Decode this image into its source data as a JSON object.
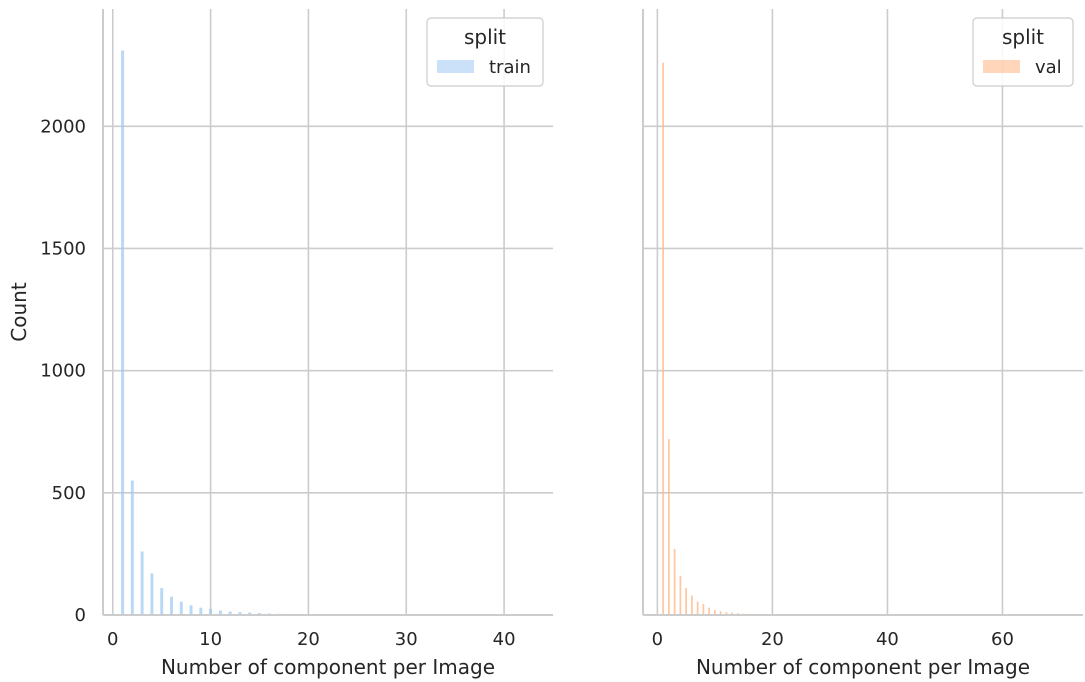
{
  "chart_data": [
    {
      "type": "bar",
      "xlabel": "Number of component per Image",
      "ylabel": "Count",
      "xlim": [
        -1,
        45
      ],
      "ylim": [
        0,
        2480
      ],
      "xticks": [
        0,
        10,
        20,
        30,
        40
      ],
      "yticks": [
        0,
        500,
        1000,
        1500,
        2000
      ],
      "grid": true,
      "legend": {
        "title": "split",
        "placement": "top-right"
      },
      "series": [
        {
          "name": "train",
          "color": "#a1c9f4",
          "x": [
            0,
            1,
            2,
            3,
            4,
            5,
            6,
            7,
            8,
            9,
            10,
            11,
            12,
            13,
            14,
            15,
            16,
            17,
            18,
            19,
            20,
            25,
            30,
            35,
            40,
            42
          ],
          "values": [
            0,
            2310,
            550,
            260,
            170,
            110,
            75,
            55,
            40,
            30,
            25,
            18,
            14,
            12,
            10,
            8,
            6,
            5,
            4,
            3,
            3,
            2,
            1,
            1,
            1,
            1
          ]
        }
      ]
    },
    {
      "type": "bar",
      "xlabel": "Number of component per Image",
      "ylabel": "",
      "xlim": [
        -2.5,
        74
      ],
      "ylim": [
        0,
        2480
      ],
      "xticks": [
        0,
        20,
        40,
        60
      ],
      "yticks": [
        0,
        500,
        1000,
        1500,
        2000
      ],
      "grid": true,
      "legend": {
        "title": "split",
        "placement": "top-right"
      },
      "series": [
        {
          "name": "val",
          "color": "#ffb482",
          "x": [
            0,
            1,
            2,
            3,
            4,
            5,
            6,
            7,
            8,
            9,
            10,
            11,
            12,
            13,
            14,
            15,
            20,
            30,
            40,
            50,
            60,
            70
          ],
          "values": [
            0,
            2260,
            720,
            270,
            160,
            110,
            80,
            55,
            45,
            30,
            20,
            15,
            12,
            10,
            8,
            6,
            3,
            2,
            1,
            1,
            1,
            1
          ]
        }
      ]
    }
  ]
}
